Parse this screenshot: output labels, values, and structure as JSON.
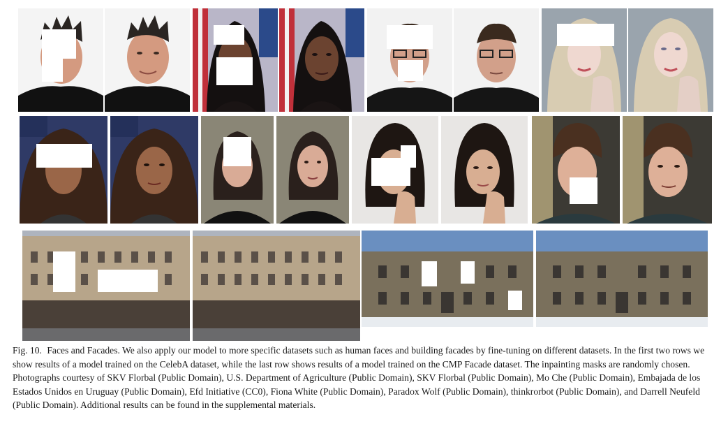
{
  "figure": {
    "caption": {
      "label": "Fig. 10.",
      "text": "Faces and Facades. We also apply our model to more specific datasets such as human faces and building facades by fine-tuning on different datasets. In the first two rows we show results of a model trained on the CelebA dataset, while the last row shows results of a model trained on the CMP Facade dataset. The inpainting masks are randomly chosen. Photographs courtesy of SKV Florbal (Public Domain), U.S. Department of Agriculture (Public Domain), SKV Florbal (Public Domain), Mo Che (Public Domain), Embajada de los Estados Unidos en Uruguay (Public Domain), Efd Initiative (CC0), Fiona White (Public Domain), Paradox Wolf (Public Domain), thinkrorbot (Public Domain), and Darrell Neufeld (Public Domain). Additional results can be found in the supplemental materials."
    },
    "rows": [
      {
        "name": "faces-row-1",
        "pairs": 4
      },
      {
        "name": "faces-row-2",
        "pairs": 4
      },
      {
        "name": "facades-row",
        "pairs": 2
      }
    ],
    "colors": {
      "background": "#ffffff",
      "caption_text": "#1a1a1a",
      "mask": "#ffffff"
    }
  }
}
